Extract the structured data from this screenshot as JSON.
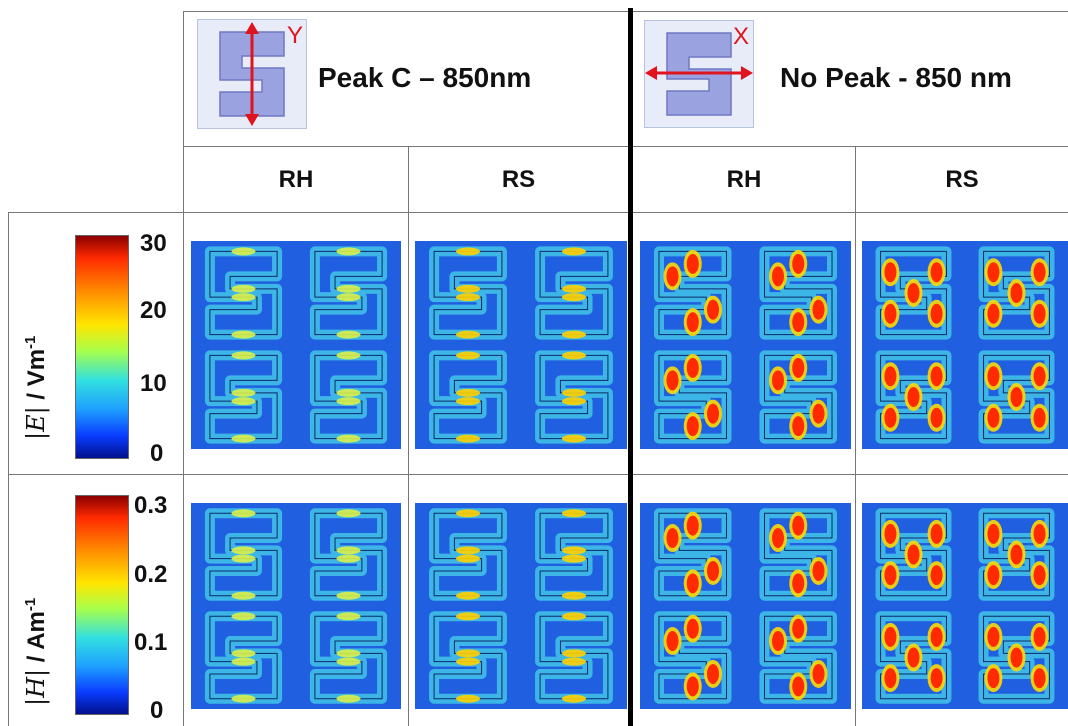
{
  "headers": {
    "left_title": "Peak C – 850nm",
    "left_icon_axis": "Y",
    "right_title": "No Peak - 850 nm",
    "right_icon_axis": "X"
  },
  "columns": [
    "RH",
    "RS",
    "RH",
    "RS"
  ],
  "rows": {
    "e_field": {
      "label_var": "|E|",
      "label_unit_prefix": " / Vm",
      "label_unit_exp": "-1",
      "ticks": [
        "30",
        "20",
        "10",
        "0"
      ]
    },
    "h_field": {
      "label_var": "|H|",
      "label_unit_prefix": " / Am",
      "label_unit_exp": "-1",
      "ticks": [
        "0.3",
        "0.2",
        "0.1",
        "0"
      ]
    }
  },
  "colors": {
    "background_field": "#1f5fe0",
    "arrow": "#e0141e",
    "icon_shape": "#9aa3e0"
  }
}
